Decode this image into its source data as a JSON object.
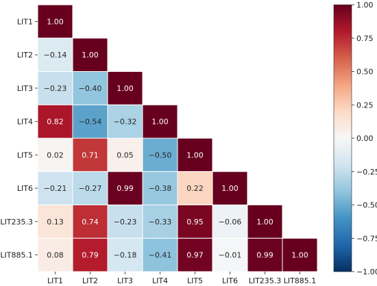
{
  "chart_data": {
    "type": "heatmap",
    "title": "",
    "xlabel": "",
    "ylabel": "",
    "x_labels": [
      "LIT1",
      "LIT2",
      "LIT3",
      "LIT4",
      "LIT5",
      "LIT6",
      "LIT235.3",
      "LIT885.1"
    ],
    "y_labels": [
      "LIT1",
      "LIT2",
      "LIT3",
      "LIT4",
      "LIT5",
      "LIT6",
      "LIT235.3",
      "LIT885.1"
    ],
    "mask": "upper-triangle",
    "values": [
      [
        1.0
      ],
      [
        -0.14,
        1.0
      ],
      [
        -0.23,
        -0.4,
        1.0
      ],
      [
        0.82,
        -0.54,
        -0.32,
        1.0
      ],
      [
        0.02,
        0.71,
        0.05,
        -0.5,
        1.0
      ],
      [
        -0.21,
        -0.27,
        0.99,
        -0.38,
        0.22,
        1.0
      ],
      [
        0.13,
        0.74,
        -0.23,
        -0.33,
        0.95,
        -0.06,
        1.0
      ],
      [
        0.08,
        0.79,
        -0.18,
        -0.41,
        0.97,
        -0.01,
        0.99,
        1.0
      ]
    ],
    "value_format": "0.00",
    "colormap": "RdBu_r",
    "vmin": -1.0,
    "vmax": 1.0,
    "colorbar": {
      "ticks": [
        1.0,
        0.75,
        0.5,
        0.25,
        0.0,
        -0.25,
        -0.5,
        -0.75,
        -1.0
      ],
      "tick_labels": [
        "1.00",
        "0.75",
        "0.50",
        "0.25",
        "0.00",
        "−0.25",
        "−0.50",
        "−0.75",
        "−1.00"
      ]
    },
    "cell_border_color": "#ffffff",
    "grid": false
  }
}
